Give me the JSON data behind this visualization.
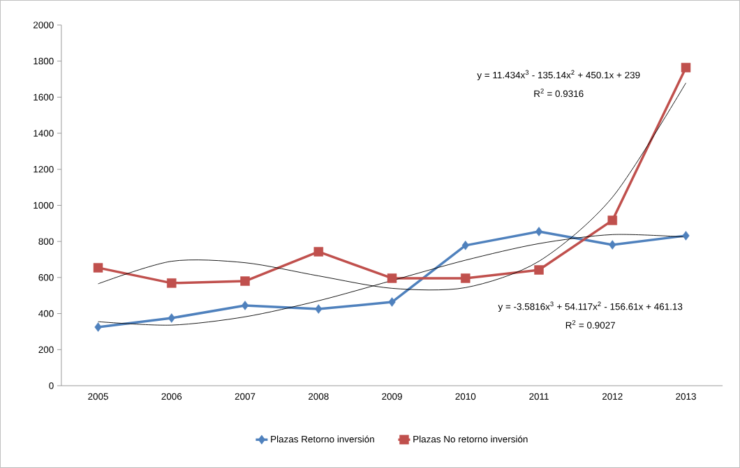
{
  "chart_data": {
    "type": "line",
    "categories": [
      "2005",
      "2006",
      "2007",
      "2008",
      "2009",
      "2010",
      "2011",
      "2012",
      "2013"
    ],
    "ylim": [
      0,
      2000
    ],
    "yticks": [
      0,
      200,
      400,
      600,
      800,
      1000,
      1200,
      1400,
      1600,
      1800,
      2000
    ],
    "grid": false,
    "legend": "bottom",
    "line_style": "solid",
    "series": [
      {
        "name": "Plazas Retorno inversión",
        "color": "#4f81bd",
        "marker": "diamond",
        "values": [
          325,
          375,
          445,
          425,
          464,
          778,
          855,
          781,
          832
        ]
      },
      {
        "name": "Plazas No retorno inversión",
        "color": "#c0504d",
        "marker": "square",
        "values": [
          654,
          569,
          580,
          743,
          596,
          596,
          642,
          917,
          1764
        ]
      },
      {
        "type": "line",
        "color": "#000000",
        "marker": "none",
        "values": [
          565,
          690,
          682,
          609,
          540,
          544,
          690,
          1045,
          1679
        ]
      },
      {
        "type": "line",
        "color": "#000000",
        "marker": "none",
        "values": [
          355,
          336,
          382,
          471,
          583,
          696,
          788,
          838,
          824
        ]
      }
    ],
    "annotations": [
      "y = 11.434x$^{3}$ - 135.14x$^{2}$ + 450.1x + 239",
      "R$^{2}$ = 0.9316",
      "y = -3.5816x$^{3}$ + 54.117x$^{2}$ - 156.61x + 461.13",
      "R$^{2}$ = 0.9027"
    ]
  }
}
